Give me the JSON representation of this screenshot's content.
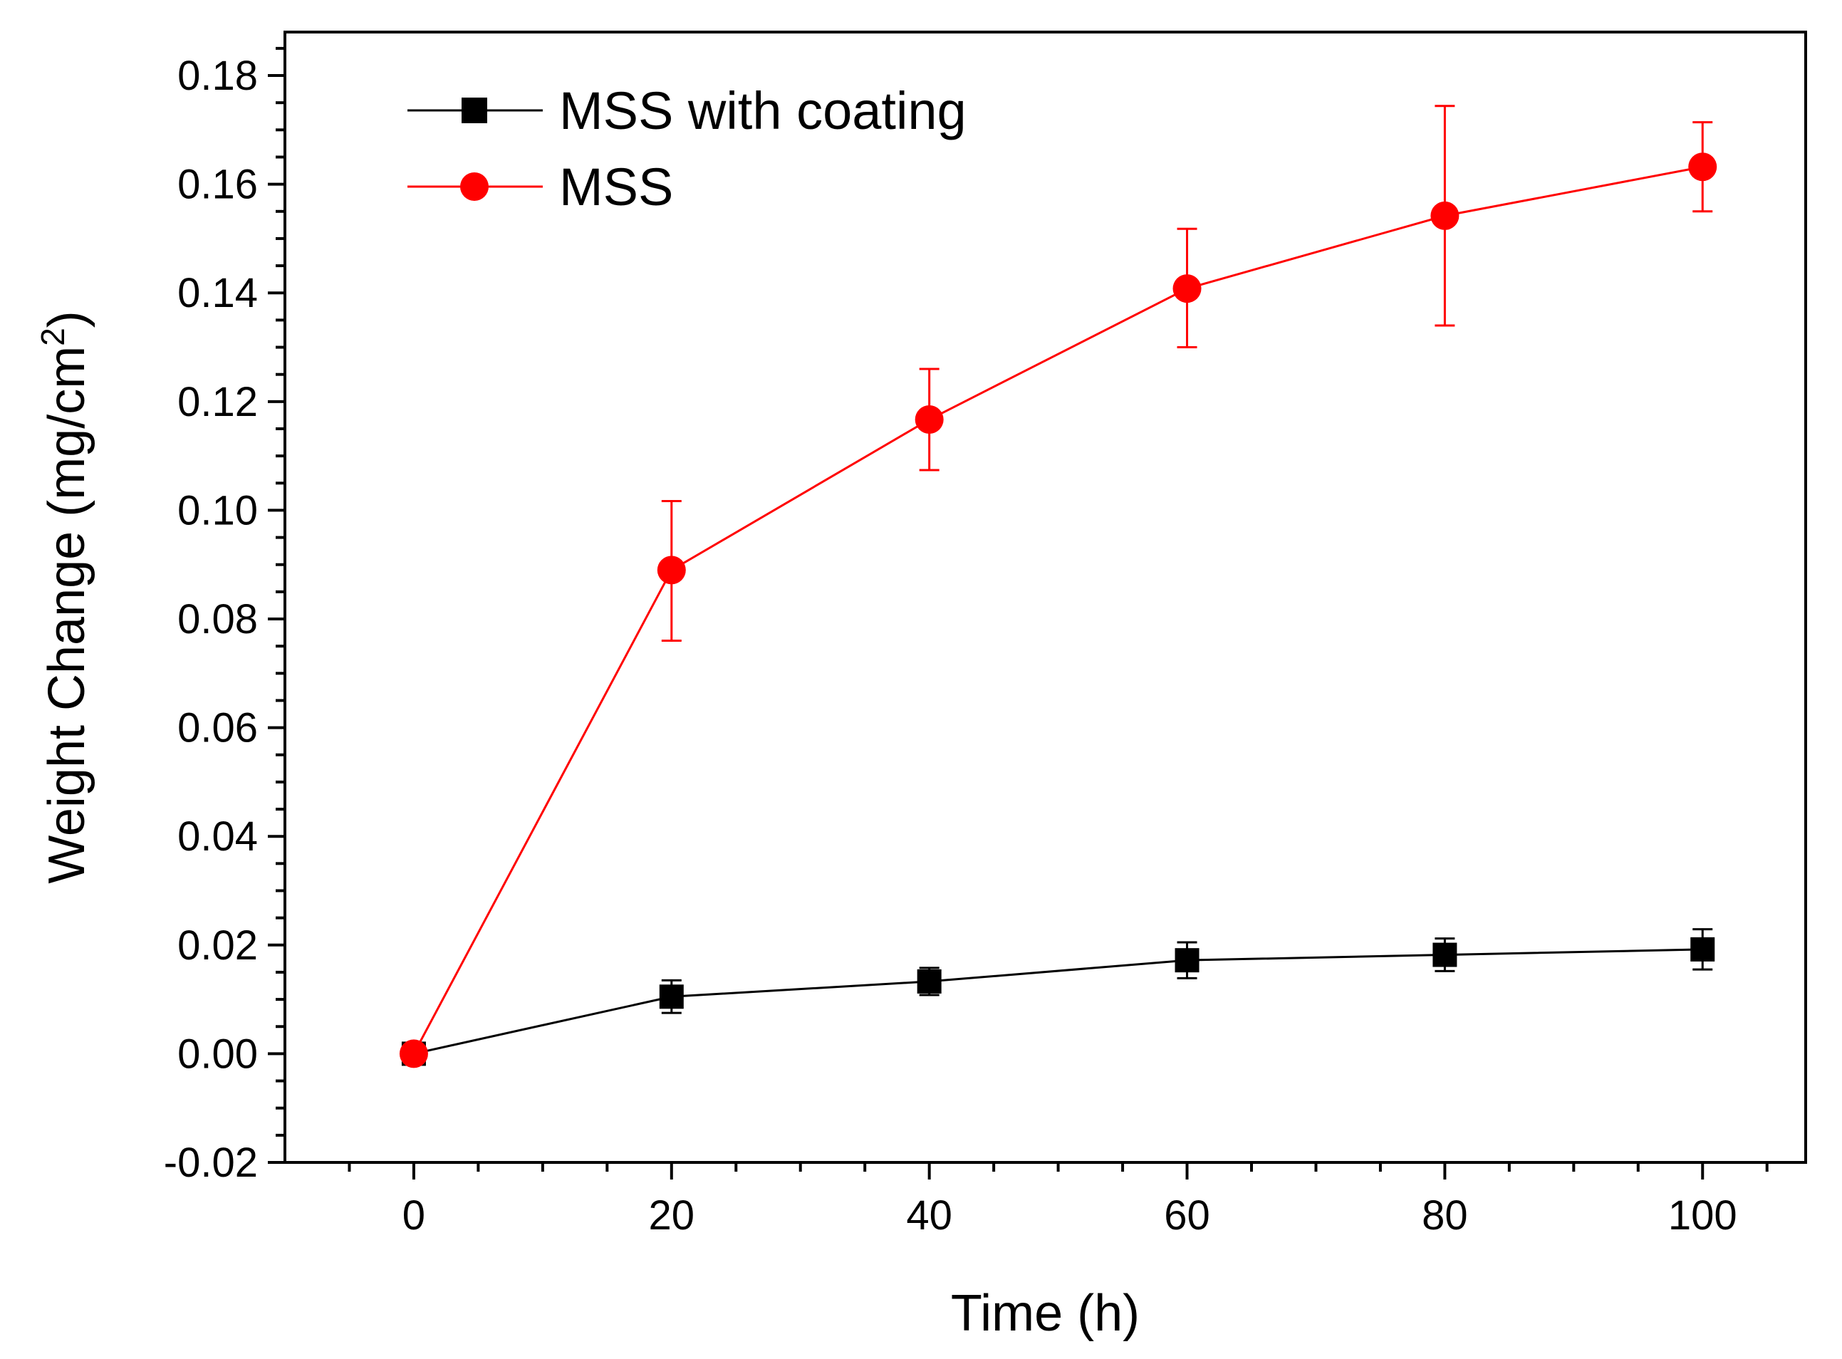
{
  "chart_data": {
    "type": "line",
    "title": "",
    "xlabel": "Time (h)",
    "ylabel_main": "Weight Change (mg/cm",
    "ylabel_sup": "2",
    "ylabel_close": ")",
    "xlim": [
      -10,
      108
    ],
    "ylim": [
      -0.02,
      0.188
    ],
    "xticks": [
      0,
      20,
      40,
      60,
      80,
      100
    ],
    "xtick_labels": [
      "0",
      "20",
      "40",
      "60",
      "80",
      "100"
    ],
    "yticks": [
      -0.02,
      0.0,
      0.02,
      0.04,
      0.06,
      0.08,
      0.1,
      0.12,
      0.14,
      0.16,
      0.18
    ],
    "ytick_labels": [
      "-0.02",
      "0.00",
      "0.02",
      "0.04",
      "0.06",
      "0.08",
      "0.10",
      "0.12",
      "0.14",
      "0.16",
      "0.18"
    ],
    "grid": false,
    "legend_position": "top-left",
    "series": [
      {
        "name": "MSS with coating",
        "color": "#000000",
        "marker": "square",
        "x": [
          0,
          20,
          40,
          60,
          80,
          100
        ],
        "y": [
          0.0,
          0.0105,
          0.0133,
          0.0172,
          0.0182,
          0.0192
        ],
        "err_low": [
          0.0005,
          0.003,
          0.0025,
          0.0033,
          0.003,
          0.0037
        ],
        "err_high": [
          0.0005,
          0.003,
          0.0025,
          0.0033,
          0.003,
          0.0037
        ]
      },
      {
        "name": "MSS",
        "color": "#ff0000",
        "marker": "circle",
        "x": [
          0,
          20,
          40,
          60,
          80,
          100
        ],
        "y": [
          0.0,
          0.089,
          0.1167,
          0.1408,
          0.1542,
          0.1632
        ],
        "err_low": [
          0.0,
          0.013,
          0.0093,
          0.0108,
          0.0202,
          0.0082
        ],
        "err_high": [
          0.0,
          0.0127,
          0.0093,
          0.011,
          0.0202,
          0.0082
        ]
      }
    ]
  }
}
